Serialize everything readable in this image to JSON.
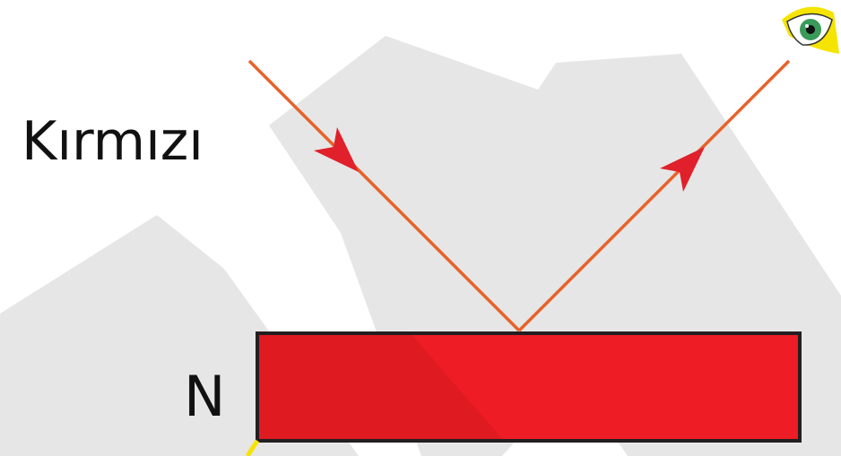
{
  "color_label": "Kırmızı",
  "object_label": "N"
}
